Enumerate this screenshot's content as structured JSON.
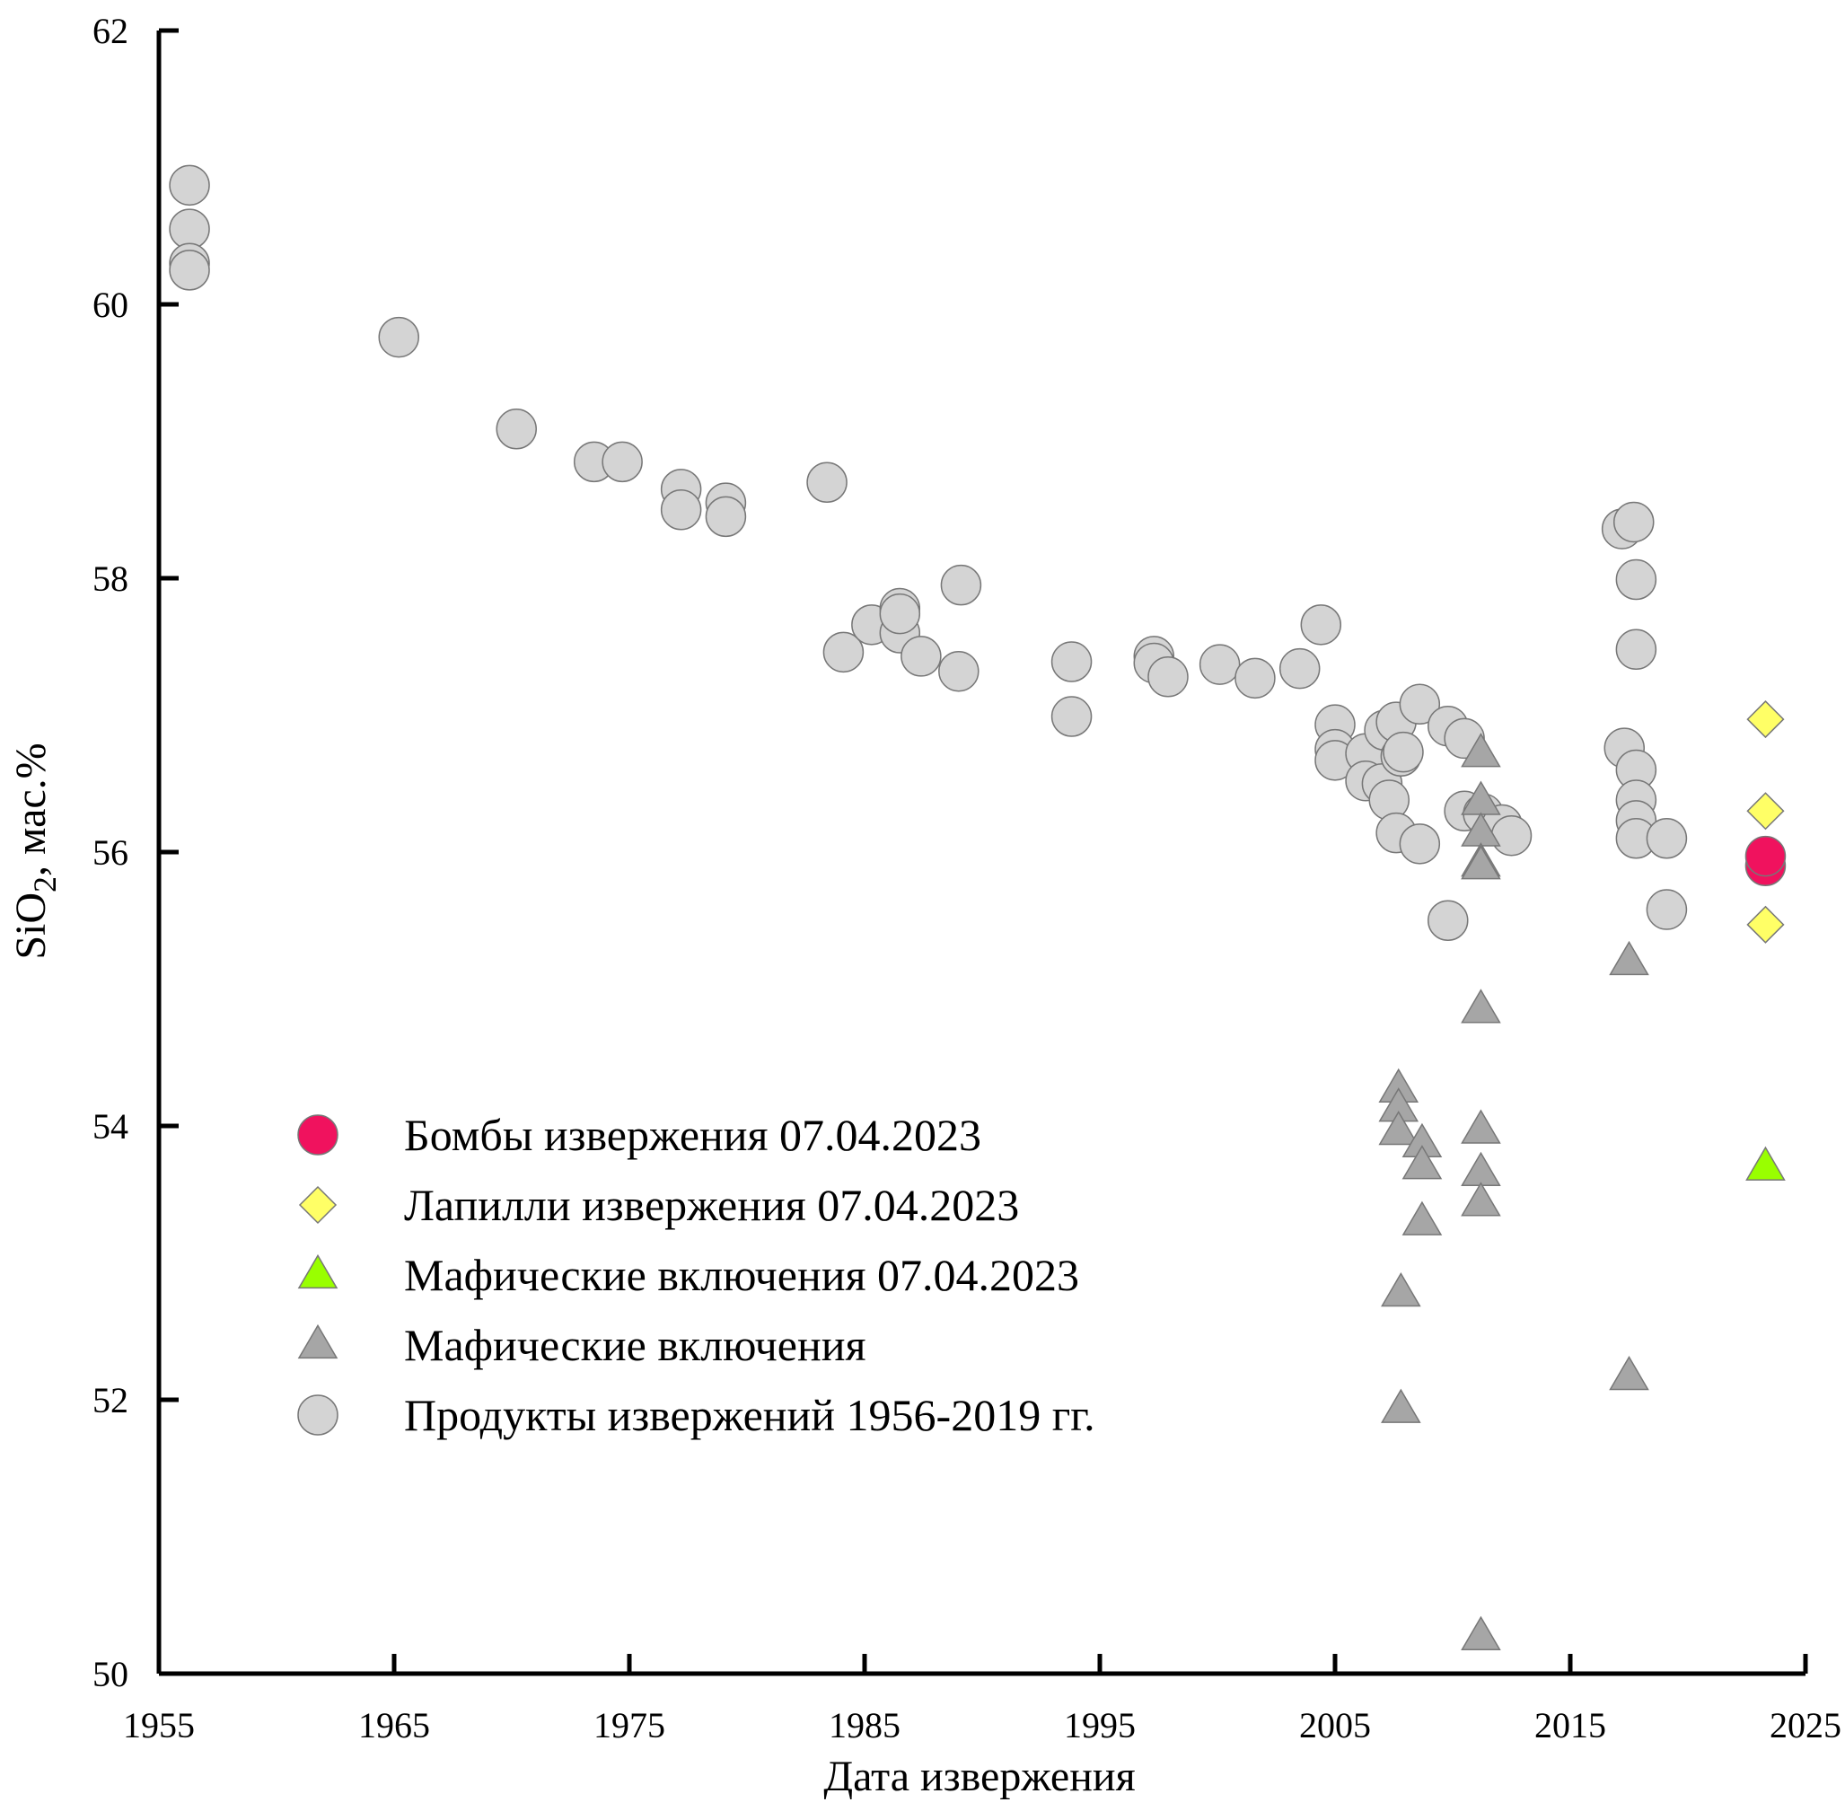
{
  "chart_data": {
    "type": "scatter",
    "title": "",
    "xlabel": "Дата извержения",
    "ylabel_main": "SiO",
    "ylabel_sub": "2",
    "ylabel_rest": ", мас.%",
    "xlim": [
      1955,
      2025
    ],
    "ylim": [
      50,
      62
    ],
    "x_ticks": [
      1955,
      1965,
      1975,
      1985,
      1995,
      2005,
      2015,
      2025
    ],
    "y_ticks": [
      50,
      52,
      54,
      56,
      58,
      60,
      62
    ],
    "grid": false,
    "legend_position": "lower-left",
    "series": [
      {
        "name": "Бомбы извержения 07.04.2023",
        "marker": "circle",
        "color": "#f0125e",
        "points": [
          [
            2023.3,
            55.9
          ],
          [
            2023.3,
            55.97
          ]
        ]
      },
      {
        "name": "Лапилли извержения 07.04.2023",
        "marker": "diamond",
        "color": "#ffff66",
        "points": [
          [
            2023.3,
            56.97
          ],
          [
            2023.3,
            56.3
          ],
          [
            2023.3,
            55.47
          ]
        ]
      },
      {
        "name": "Мафические включения 07.04.2023",
        "marker": "triangle",
        "color": "#99ff00",
        "points": [
          [
            2023.3,
            53.7
          ]
        ]
      },
      {
        "name": "Мафические включения",
        "marker": "triangle",
        "color": "#a6a6a6",
        "points": [
          [
            2007.7,
            54.27
          ],
          [
            2007.7,
            54.13
          ],
          [
            2007.7,
            53.96
          ],
          [
            2007.8,
            52.78
          ],
          [
            2007.8,
            51.93
          ],
          [
            2008.7,
            53.87
          ],
          [
            2008.7,
            53.71
          ],
          [
            2008.7,
            53.3
          ],
          [
            2011.2,
            56.72
          ],
          [
            2011.2,
            56.37
          ],
          [
            2011.2,
            56.14
          ],
          [
            2011.2,
            55.92
          ],
          [
            2011.2,
            55.9
          ],
          [
            2011.2,
            54.85
          ],
          [
            2011.2,
            53.97
          ],
          [
            2011.2,
            53.66
          ],
          [
            2011.2,
            53.44
          ],
          [
            2011.2,
            50.27
          ],
          [
            2017.5,
            55.2
          ],
          [
            2017.5,
            52.17
          ]
        ]
      },
      {
        "name": "Продукты извержений 1956-2019 гг.",
        "marker": "circle",
        "color": "#d4d4d4",
        "points": [
          [
            1956.3,
            60.87
          ],
          [
            1956.3,
            60.55
          ],
          [
            1956.3,
            60.3
          ],
          [
            1956.3,
            60.25
          ],
          [
            1965.2,
            59.76
          ],
          [
            1970.2,
            59.09
          ],
          [
            1973.5,
            58.85
          ],
          [
            1974.7,
            58.85
          ],
          [
            1977.2,
            58.65
          ],
          [
            1977.2,
            58.5
          ],
          [
            1979.1,
            58.55
          ],
          [
            1979.1,
            58.45
          ],
          [
            1983.4,
            58.7
          ],
          [
            1984.1,
            57.46
          ],
          [
            1985.3,
            57.66
          ],
          [
            1986.5,
            57.78
          ],
          [
            1986.5,
            57.6
          ],
          [
            1986.5,
            57.74
          ],
          [
            1987.4,
            57.43
          ],
          [
            1989.1,
            57.95
          ],
          [
            1989.0,
            57.32
          ],
          [
            1993.8,
            57.39
          ],
          [
            1993.8,
            56.99
          ],
          [
            1997.3,
            57.43
          ],
          [
            1997.3,
            57.38
          ],
          [
            1997.9,
            57.28
          ],
          [
            2000.1,
            57.37
          ],
          [
            2001.6,
            57.27
          ],
          [
            2003.5,
            57.34
          ],
          [
            2004.4,
            57.66
          ],
          [
            2005.0,
            56.93
          ],
          [
            2005.0,
            56.75
          ],
          [
            2005.0,
            56.67
          ],
          [
            2006.3,
            56.72
          ],
          [
            2006.3,
            56.52
          ],
          [
            2007.0,
            56.5
          ],
          [
            2007.1,
            56.89
          ],
          [
            2007.3,
            56.38
          ],
          [
            2007.6,
            56.95
          ],
          [
            2007.8,
            56.7
          ],
          [
            2007.9,
            56.73
          ],
          [
            2007.6,
            56.14
          ],
          [
            2008.6,
            57.08
          ],
          [
            2008.6,
            56.06
          ],
          [
            2009.8,
            56.92
          ],
          [
            2009.8,
            55.5
          ],
          [
            2010.5,
            56.83
          ],
          [
            2010.5,
            56.3
          ],
          [
            2011.3,
            56.28
          ],
          [
            2012.1,
            56.2
          ],
          [
            2012.5,
            56.12
          ],
          [
            2017.2,
            58.36
          ],
          [
            2017.7,
            58.41
          ],
          [
            2017.8,
            57.99
          ],
          [
            2017.8,
            57.48
          ],
          [
            2017.3,
            56.76
          ],
          [
            2017.8,
            56.6
          ],
          [
            2017.8,
            56.38
          ],
          [
            2017.8,
            56.23
          ],
          [
            2017.8,
            56.1
          ],
          [
            2019.1,
            56.1
          ],
          [
            2019.1,
            55.58
          ]
        ]
      }
    ]
  }
}
